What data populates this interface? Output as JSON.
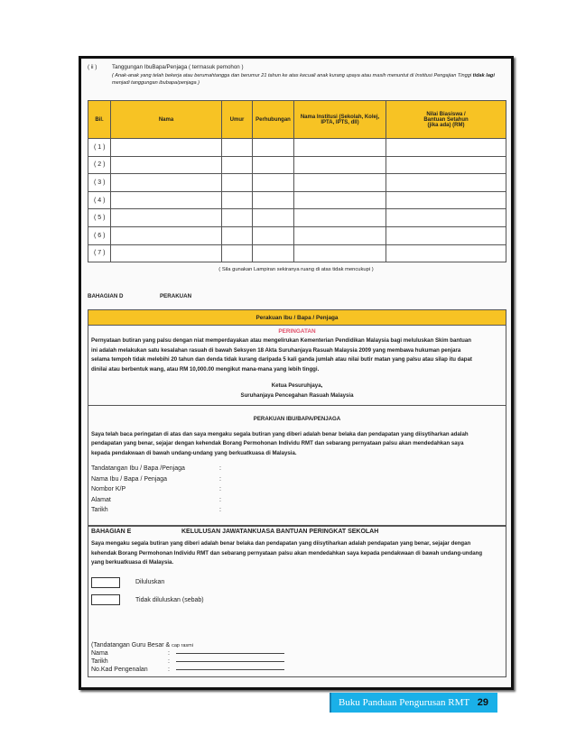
{
  "section_ii": {
    "num": "( ii )",
    "title": "Tanggungan IbuBapa/Penjaga ( termasuk pemohon )",
    "note": "( Anak-anak yang telah bekerja atau berumahtangga dan berumur 21 tahun ke atas kecuali anak kurang upaya atau masih menuntut di Institusi Pengajian Tinggi",
    "note_bold": "tidak lagi",
    "note_end": "menjadi tanggungan ibubapa/penjaga )"
  },
  "table": {
    "headers": [
      "Bil.",
      "Nama",
      "Umur",
      "Perhubungan",
      "Nama Institusi (Sekolah, Kolej, IPTA, IPTS, dll)",
      "Nilai Biasiswa / Bantuan Setahun (jika ada) (RM)"
    ],
    "rows": [
      "( 1 )",
      "( 2 )",
      "( 3 )",
      "( 4 )",
      "( 5 )",
      "( 6 )",
      "( 7 )"
    ],
    "footnote": "( Sila gunakan Lampiran sekiranya ruang di atas tidak mencukupi )"
  },
  "bahagian_d": {
    "label": "BAHAGIAN D",
    "title": "PERAKUAN",
    "box_title": "Perakuan Ibu / Bapa / Penjaga",
    "warning_title": "PERINGATAN",
    "warning": "Pernyataan butiran yang palsu dengan niat memperdayakan atau mengelirukan Kementerian Pendidikan Malaysia bagi meluluskan Skim bantuan ini adalah melakukan satu kesalahan rasuah di bawah Seksyen 18 Akta Suruhanjaya Rasuah Malaysia 2009 yang membawa hukuman penjara selama tempoh tidak melebihi 20 tahun dan denda tidak kurang daripada 5 kali ganda jumlah atau nilai butir matan yang palsu atau silap itu dapat dinilai atau berbentuk wang, atau RM 10,000.00 mengikut mana-mana yang lebih tinggi.",
    "sign1": "Ketua Pesuruhjaya,",
    "sign2": "Suruhanjaya Pencegahan Rasuah Malaysia",
    "perakuan_title": "PERAKUAN IBU/BAPA/PENJAGA",
    "perakuan": "Saya telah baca peringatan di atas dan saya mengaku segala butiran yang diberi adalah benar belaka dan pendapatan yang diisytiharkan adalah pendapatan yang benar, sejajar dengan kehendak Borang Permohonan Individu RMT dan sebarang pernyataan palsu akan mendedahkan saya kepada pendakwaan di bawah undang-undang yang berkuatkuasa di Malaysia.",
    "fields": [
      "Tandatangan Ibu / Bapa /Penjaga",
      "Nama Ibu / Bapa / Penjaga",
      "Nombor K/P",
      "Alamat",
      "Tarikh"
    ],
    "colon": ":"
  },
  "bahagian_e": {
    "label": "BAHAGIAN E",
    "title": "KELULUSAN JAWATANKUASA BANTUAN PERINGKAT SEKOLAH",
    "text": "Saya mengaku segala butiran yang diberi adalah benar belaka dan pendapatan yang diisytiharkan adalah pendapatan yang benar, sejajar dengan kehendak Borang Permohonan Individu RMT dan sebarang pernyataan palsu akan mendedahkan saya kepada pendakwaan di bawah undang-undang yang berkuatkuasa di Malaysia.",
    "opt1": "Diluluskan",
    "opt2": "Tidak diluluskan (sebab)",
    "sign": "(Tandatangan Guru Besar &",
    "stamp": "cap rasmi",
    "fields": [
      "Nama",
      "Tarikh",
      "No.Kad Pengenalan"
    ],
    "colon": ":"
  },
  "footer": {
    "title": "Buku Panduan Pengurusan RMT",
    "page": "29"
  }
}
